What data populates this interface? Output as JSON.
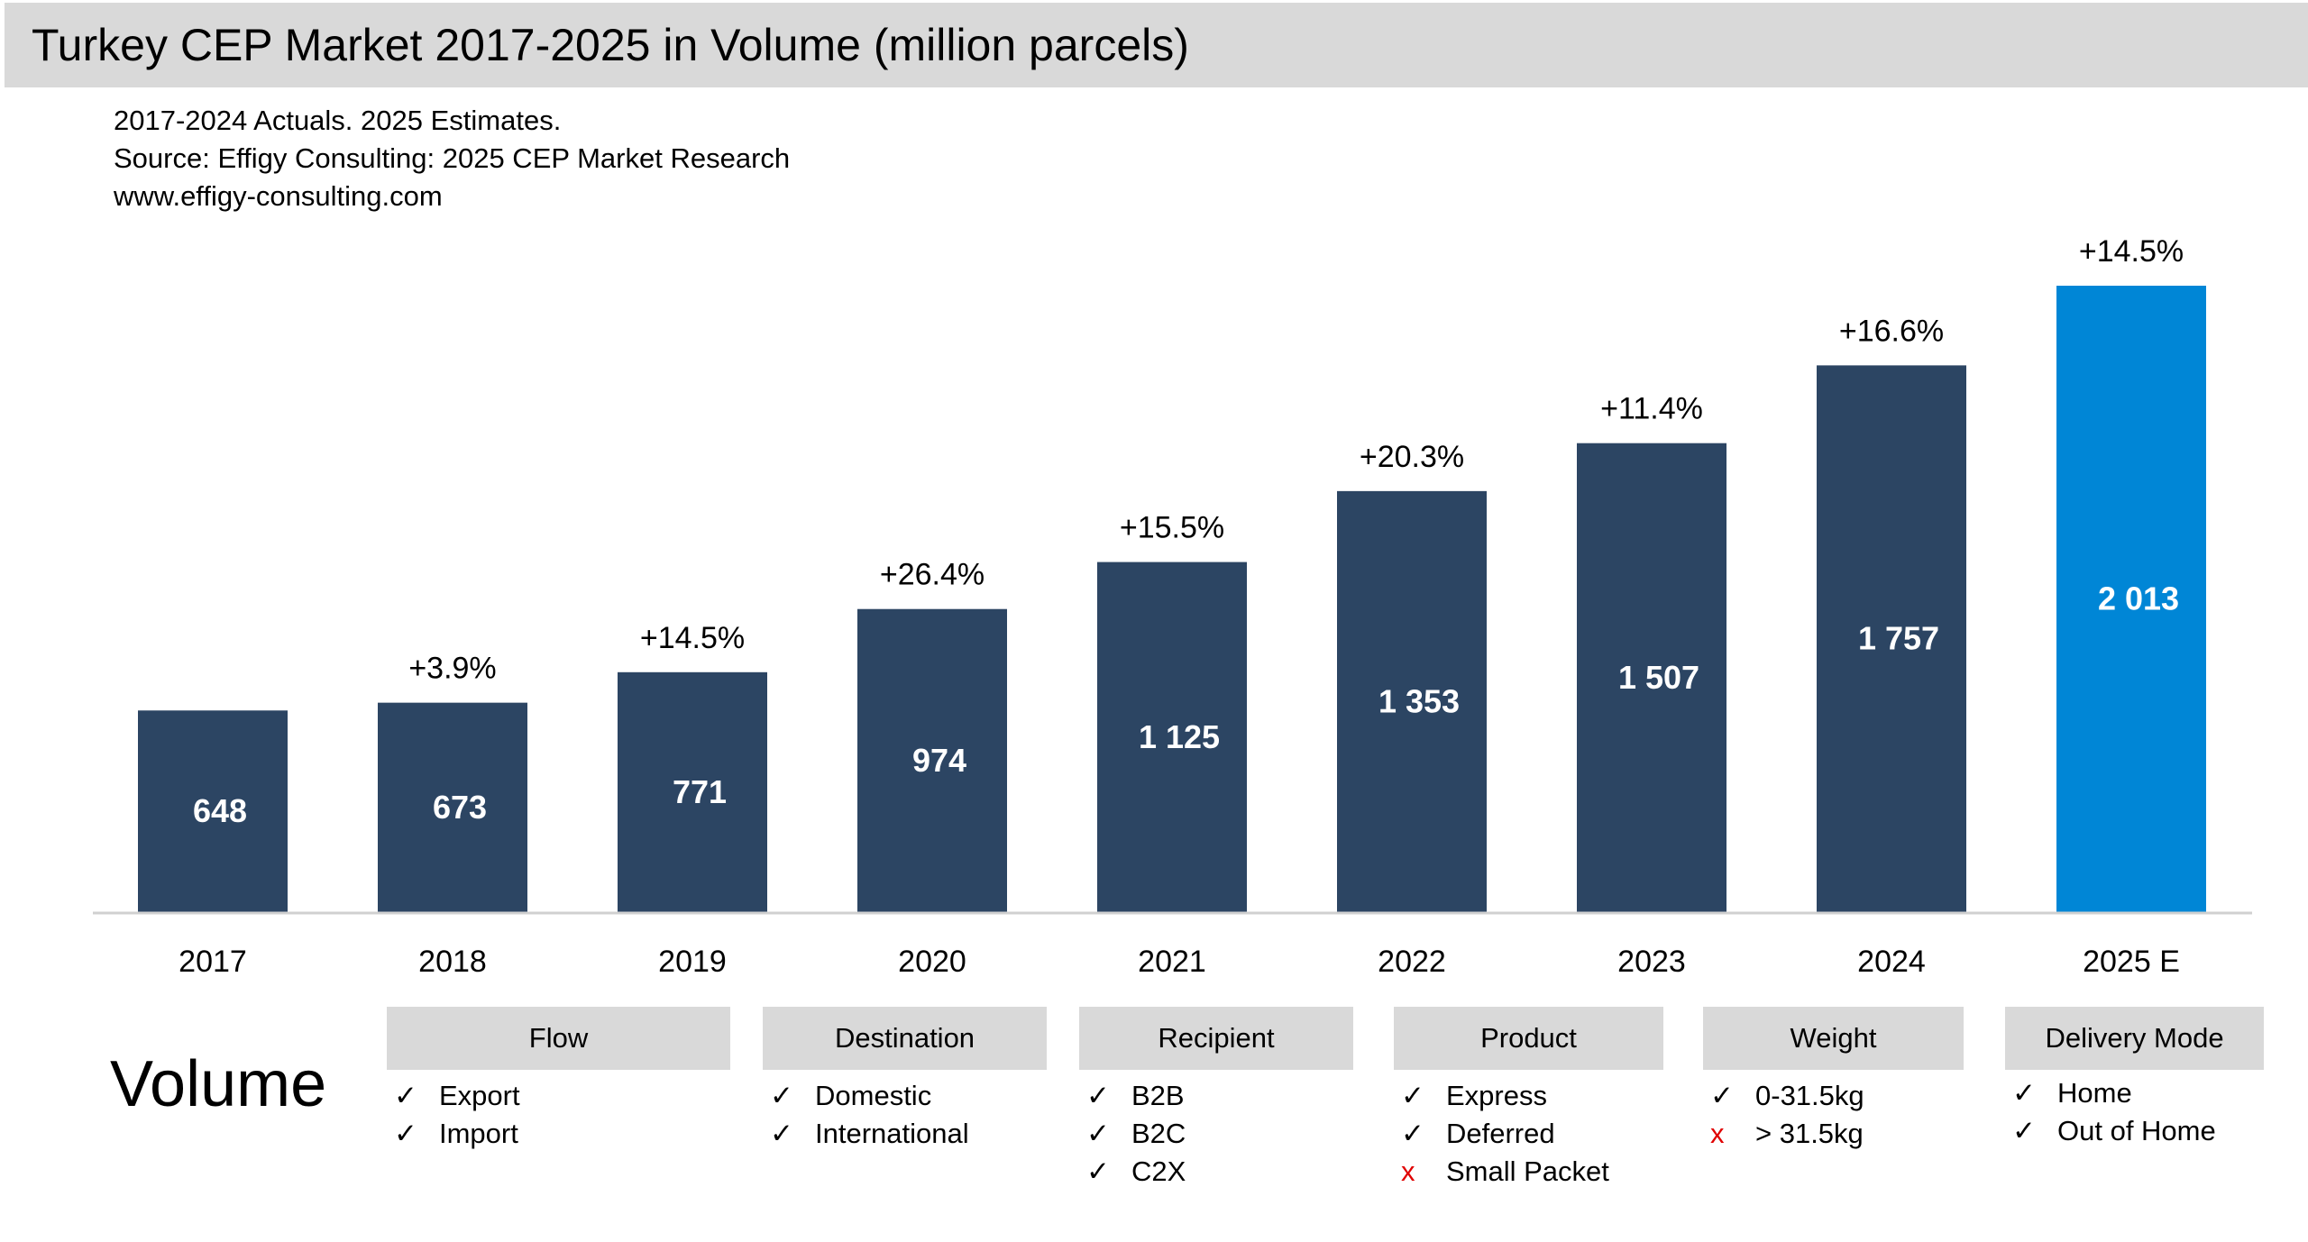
{
  "title": "Turkey CEP Market 2017-2025 in Volume (million parcels)",
  "notes": [
    "2017-2024 Actuals. 2025 Estimates.",
    "Source: Effigy Consulting: 2025 CEP Market Research",
    "www.effigy-consulting.com"
  ],
  "chart_data": {
    "type": "bar",
    "title": "Turkey CEP Market 2017-2025 in Volume (million parcels)",
    "categories": [
      "2017",
      "2018",
      "2019",
      "2020",
      "2021",
      "2022",
      "2023",
      "2024",
      "2025 E"
    ],
    "values": [
      648,
      673,
      771,
      974,
      1125,
      1353,
      1507,
      1757,
      2013
    ],
    "value_labels": [
      "648",
      "673",
      "771",
      "974",
      "1 125",
      "1 353",
      "1 507",
      "1 757",
      "2 013"
    ],
    "growth_labels": [
      "",
      "+3.9%",
      "+14.5%",
      "+26.4%",
      "+15.5%",
      "+20.3%",
      "+11.4%",
      "+16.6%",
      "+14.5%"
    ],
    "estimate": [
      false,
      false,
      false,
      false,
      false,
      false,
      false,
      false,
      true
    ],
    "ylim": [
      0,
      2013
    ],
    "grid": false,
    "colors": {
      "actual": "#2c4563",
      "estimate": "#0086d6"
    }
  },
  "volume_label": "Volume",
  "segments": [
    {
      "header": "Flow",
      "items": [
        {
          "mark": "check",
          "label": "Export"
        },
        {
          "mark": "check",
          "label": "Import"
        }
      ]
    },
    {
      "header": "Destination",
      "items": [
        {
          "mark": "check",
          "label": "Domestic"
        },
        {
          "mark": "check",
          "label": "International"
        }
      ]
    },
    {
      "header": "Recipient",
      "items": [
        {
          "mark": "check",
          "label": "B2B"
        },
        {
          "mark": "check",
          "label": "B2C"
        },
        {
          "mark": "check",
          "label": "C2X"
        }
      ]
    },
    {
      "header": "Product",
      "items": [
        {
          "mark": "check",
          "label": "Express"
        },
        {
          "mark": "check",
          "label": "Deferred"
        },
        {
          "mark": "cross",
          "label": "Small Packet"
        }
      ]
    },
    {
      "header": "Weight",
      "items": [
        {
          "mark": "check",
          "label": "0-31.5kg"
        },
        {
          "mark": "cross",
          "label": "> 31.5kg"
        }
      ]
    },
    {
      "header": "Delivery Mode",
      "items": [
        {
          "mark": "check",
          "label": "Home"
        },
        {
          "mark": "check",
          "label": "Out of Home"
        }
      ]
    }
  ],
  "marks": {
    "check": "✓",
    "cross": "x"
  }
}
